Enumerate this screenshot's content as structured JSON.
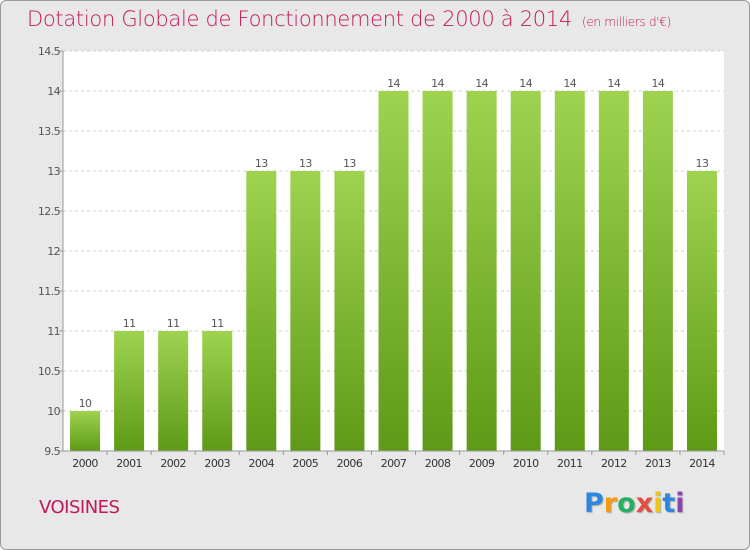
{
  "chart_data": {
    "type": "bar",
    "title": "Dotation Globale de Fonctionnement de 2000 à 2014",
    "unit": "(en milliers d'€)",
    "categories": [
      "2000",
      "2001",
      "2002",
      "2003",
      "2004",
      "2005",
      "2006",
      "2007",
      "2008",
      "2009",
      "2010",
      "2011",
      "2012",
      "2013",
      "2014"
    ],
    "values": [
      10,
      11,
      11,
      11,
      13,
      13,
      13,
      14,
      14,
      14,
      14,
      14,
      14,
      14,
      13
    ],
    "value_labels": [
      "10",
      "11",
      "11",
      "11",
      "13",
      "13",
      "13",
      "14",
      "14",
      "14",
      "14",
      "14",
      "14",
      "14",
      "13"
    ],
    "ylim": [
      9.5,
      14.5
    ],
    "yticks": [
      9.5,
      10,
      10.5,
      11,
      11.5,
      12,
      12.5,
      13,
      13.5,
      14,
      14.5
    ],
    "ytick_labels": [
      "9.5",
      "10",
      "10.5",
      "11",
      "11.5",
      "12",
      "12.5",
      "13",
      "13.5",
      "14",
      "14.5"
    ],
    "grid": true,
    "bar_color_top": "#9ed34f",
    "bar_color_bottom": "#5e9a17"
  },
  "footer": {
    "commune": "VOISINES",
    "brand_letters": [
      {
        "ch": "P",
        "color": "#2e86de"
      },
      {
        "ch": "r",
        "color": "#f39c12"
      },
      {
        "ch": "o",
        "color": "#27ae60"
      },
      {
        "ch": "x",
        "color": "#e74c3c"
      },
      {
        "ch": "i",
        "color": "#f1c40f"
      },
      {
        "ch": "t",
        "color": "#2e86de"
      },
      {
        "ch": "i",
        "color": "#8e44ad"
      }
    ]
  }
}
